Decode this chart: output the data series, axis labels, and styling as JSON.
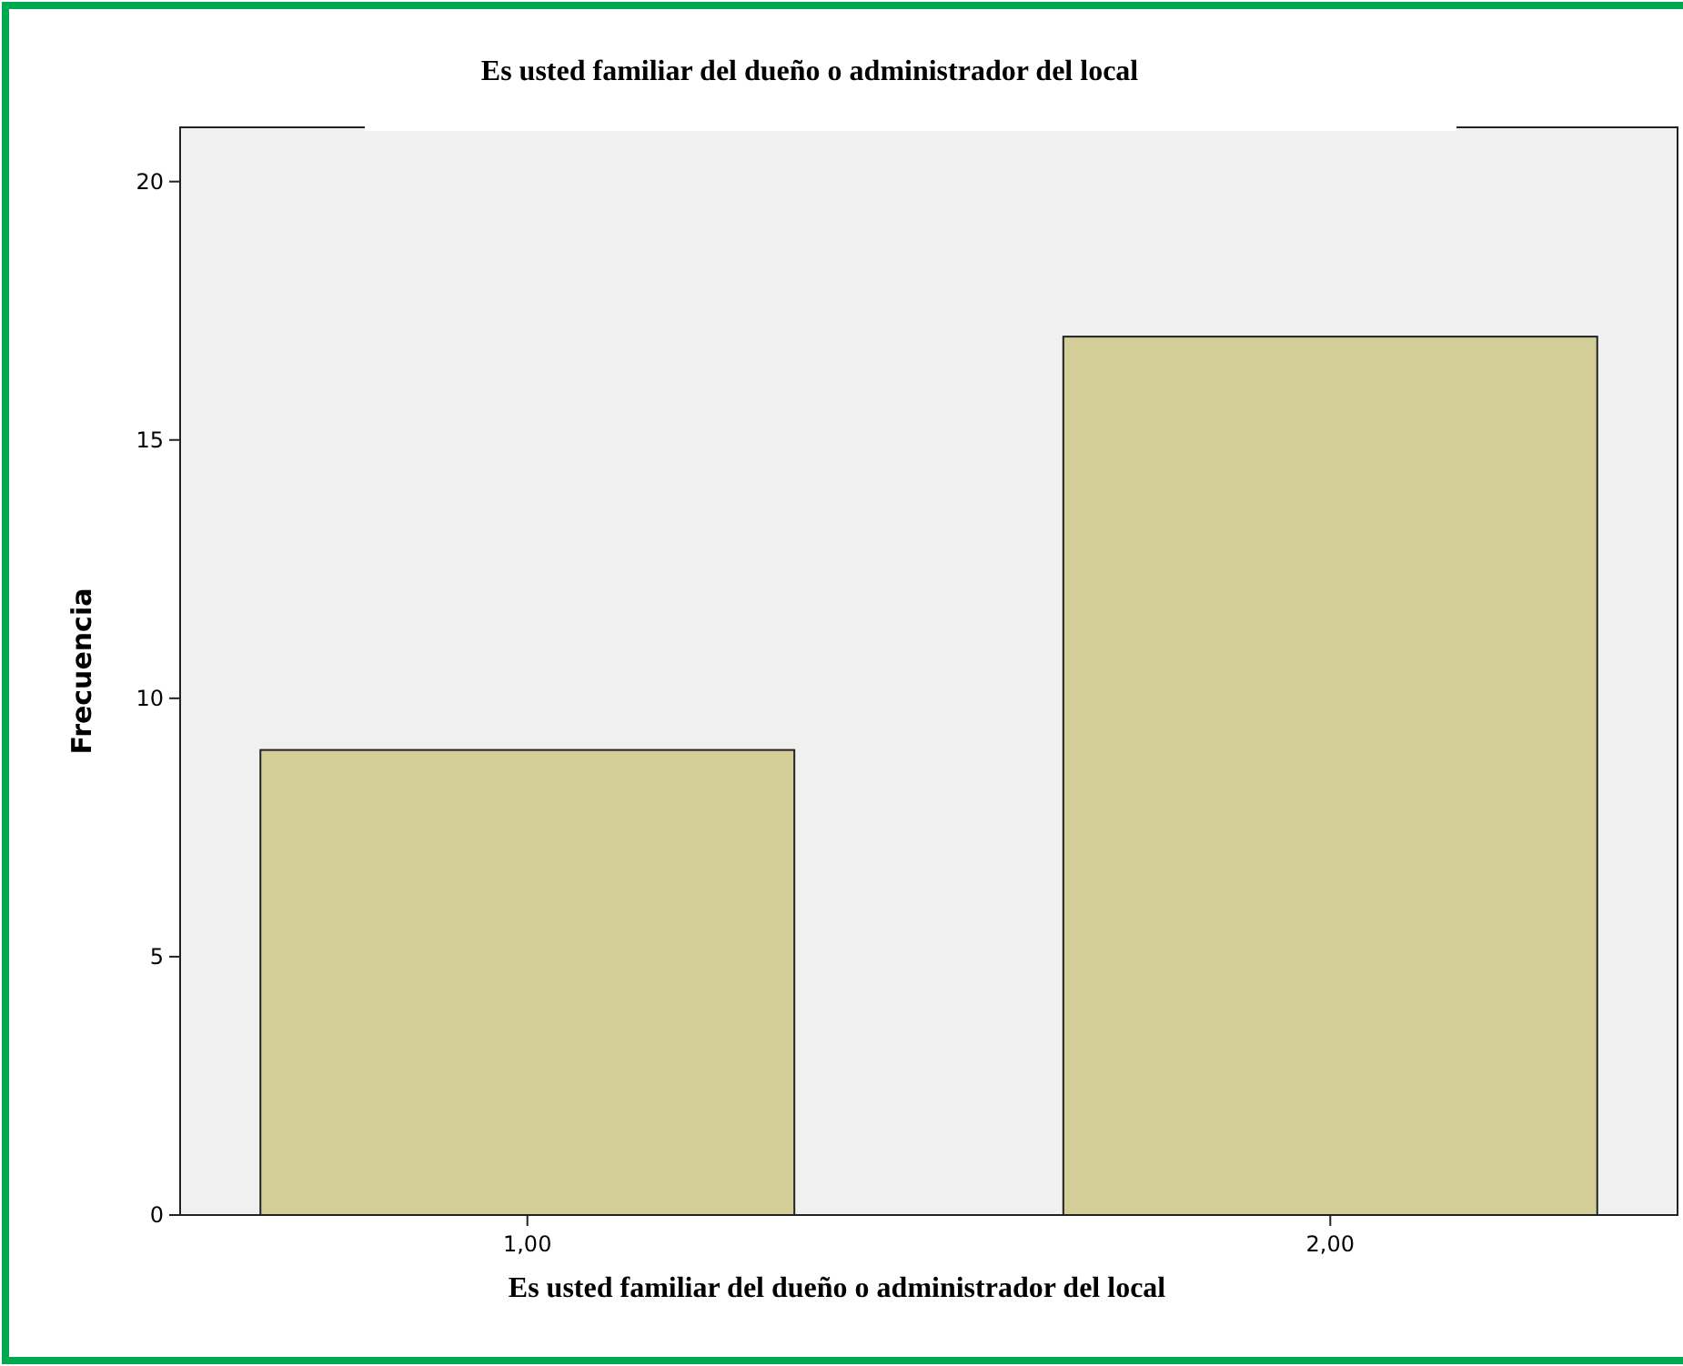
{
  "chart_data": {
    "type": "bar",
    "title": "Es usted familiar del dueño o administrador del local",
    "xlabel": "Es usted familiar del dueño o administrador del local",
    "ylabel": "Frecuencia",
    "categories": [
      "1,00",
      "2,00"
    ],
    "values": [
      9,
      17
    ],
    "color": "#d3ce98",
    "ylim": [
      0,
      21.05
    ],
    "yticks": [
      0,
      5,
      10,
      15,
      20
    ],
    "grid": false
  }
}
